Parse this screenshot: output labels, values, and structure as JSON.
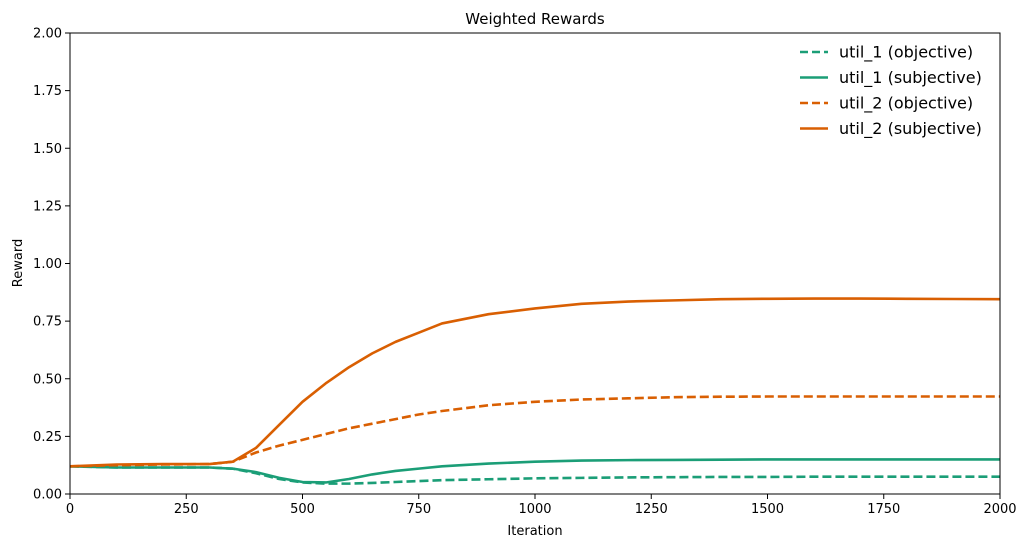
{
  "chart_data": {
    "type": "line",
    "title": "Weighted Rewards",
    "xlabel": "Iteration",
    "ylabel": "Reward",
    "xlim": [
      0,
      2000
    ],
    "ylim": [
      0,
      2.0
    ],
    "xticks": [
      0,
      250,
      500,
      750,
      1000,
      1250,
      1500,
      1750,
      2000
    ],
    "yticks": [
      0.0,
      0.25,
      0.5,
      0.75,
      1.0,
      1.25,
      1.5,
      1.75,
      2.0
    ],
    "xtick_labels": [
      "0",
      "250",
      "500",
      "750",
      "1000",
      "1250",
      "1500",
      "1750",
      "2000"
    ],
    "ytick_labels": [
      "0.00",
      "0.25",
      "0.50",
      "0.75",
      "1.00",
      "1.25",
      "1.50",
      "1.75",
      "2.00"
    ],
    "grid": false,
    "legend_position": "top-right",
    "series": [
      {
        "name": "util_1 (objective)",
        "color": "#1b9e77",
        "style": "dashed",
        "x": [
          0,
          100,
          200,
          300,
          350,
          400,
          450,
          500,
          550,
          600,
          650,
          700,
          750,
          800,
          900,
          1000,
          1100,
          1200,
          1300,
          1400,
          1500,
          1600,
          1700,
          1800,
          1900,
          2000
        ],
        "y": [
          0.12,
          0.115,
          0.115,
          0.115,
          0.11,
          0.09,
          0.065,
          0.05,
          0.045,
          0.045,
          0.048,
          0.052,
          0.056,
          0.06,
          0.064,
          0.068,
          0.07,
          0.072,
          0.073,
          0.074,
          0.074,
          0.075,
          0.075,
          0.075,
          0.075,
          0.075
        ]
      },
      {
        "name": "util_1 (subjective)",
        "color": "#1b9e77",
        "style": "solid",
        "x": [
          0,
          100,
          200,
          300,
          350,
          400,
          450,
          500,
          550,
          600,
          650,
          700,
          750,
          800,
          900,
          1000,
          1100,
          1200,
          1300,
          1400,
          1500,
          1600,
          1700,
          1800,
          1900,
          2000
        ],
        "y": [
          0.12,
          0.115,
          0.115,
          0.115,
          0.11,
          0.095,
          0.07,
          0.052,
          0.05,
          0.065,
          0.085,
          0.1,
          0.11,
          0.12,
          0.132,
          0.14,
          0.145,
          0.147,
          0.148,
          0.149,
          0.15,
          0.15,
          0.15,
          0.15,
          0.15,
          0.15
        ]
      },
      {
        "name": "util_2 (objective)",
        "color": "#d95f02",
        "style": "dashed",
        "x": [
          0,
          100,
          200,
          300,
          350,
          400,
          450,
          500,
          550,
          600,
          650,
          700,
          750,
          800,
          900,
          1000,
          1100,
          1200,
          1300,
          1400,
          1500,
          1600,
          1700,
          1800,
          1900,
          2000
        ],
        "y": [
          0.12,
          0.125,
          0.128,
          0.13,
          0.14,
          0.18,
          0.21,
          0.235,
          0.26,
          0.285,
          0.305,
          0.325,
          0.345,
          0.36,
          0.385,
          0.4,
          0.41,
          0.415,
          0.42,
          0.422,
          0.423,
          0.423,
          0.423,
          0.423,
          0.423,
          0.423
        ]
      },
      {
        "name": "util_2 (subjective)",
        "color": "#d95f02",
        "style": "solid",
        "x": [
          0,
          100,
          200,
          300,
          350,
          400,
          450,
          500,
          550,
          600,
          650,
          700,
          750,
          800,
          900,
          1000,
          1100,
          1200,
          1300,
          1400,
          1500,
          1600,
          1700,
          1800,
          1900,
          2000
        ],
        "y": [
          0.12,
          0.128,
          0.13,
          0.13,
          0.14,
          0.2,
          0.3,
          0.4,
          0.48,
          0.55,
          0.61,
          0.66,
          0.7,
          0.74,
          0.78,
          0.805,
          0.825,
          0.835,
          0.84,
          0.845,
          0.847,
          0.848,
          0.848,
          0.847,
          0.846,
          0.845
        ]
      }
    ]
  }
}
